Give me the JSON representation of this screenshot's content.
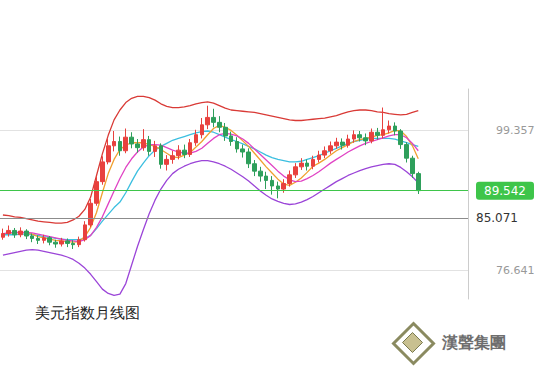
{
  "chart_data": {
    "type": "candlestick",
    "title": "美元指数月线图",
    "logo_text": "漢聲集團",
    "categories": [
      null,
      null,
      null,
      null,
      null,
      null,
      null,
      null,
      null,
      null,
      null,
      null,
      null,
      null,
      null,
      null,
      null,
      null,
      null,
      null,
      null,
      null,
      null,
      null,
      null,
      null,
      null,
      null,
      null,
      null,
      null,
      null,
      null,
      null,
      null,
      null,
      null,
      null,
      null,
      null,
      null,
      null,
      null,
      null,
      null,
      null,
      null,
      null,
      null,
      null,
      null,
      null,
      null,
      null,
      null,
      null,
      null,
      null,
      null,
      null,
      null,
      null,
      null,
      null,
      null,
      null,
      null,
      null,
      null,
      null,
      null,
      null,
      null,
      null,
      null,
      null,
      null,
      null,
      null,
      null
    ],
    "open": [
      82.0,
      82.6,
      83.1,
      82.4,
      83.0,
      82.2,
      81.8,
      81.5,
      81.9,
      81.2,
      80.9,
      81.4,
      81.0,
      80.8,
      81.6,
      84.0,
      87.5,
      91.0,
      94.2,
      96.8,
      97.5,
      96.0,
      98.2,
      97.1,
      96.5,
      97.8,
      95.9,
      96.8,
      93.8,
      94.6,
      95.2,
      96.1,
      95.4,
      97.3,
      98.6,
      100.2,
      101.4,
      100.6,
      99.8,
      98.4,
      97.5,
      96.3,
      95.8,
      93.9,
      92.7,
      91.9,
      91.2,
      90.3,
      89.8,
      90.7,
      92.1,
      93.4,
      94.0,
      93.5,
      94.6,
      95.3,
      96.0,
      96.8,
      97.4,
      96.9,
      97.9,
      98.6,
      98.1,
      97.6,
      99.0,
      98.5,
      99.4,
      100.0,
      99.2,
      97.0,
      94.8,
      92.3,
      null,
      null,
      null,
      null,
      null,
      null,
      null,
      null
    ],
    "close": [
      82.6,
      83.1,
      82.4,
      83.0,
      82.2,
      81.8,
      81.5,
      81.9,
      81.2,
      80.9,
      81.4,
      81.0,
      80.8,
      81.6,
      84.0,
      87.5,
      91.0,
      94.2,
      96.8,
      97.5,
      96.0,
      98.2,
      97.1,
      96.5,
      97.8,
      95.9,
      96.8,
      93.8,
      94.6,
      95.2,
      96.1,
      95.4,
      97.3,
      98.6,
      100.2,
      101.4,
      100.6,
      99.8,
      98.4,
      97.5,
      96.3,
      95.8,
      93.9,
      92.7,
      91.9,
      91.2,
      90.3,
      89.8,
      90.7,
      92.1,
      93.4,
      94.0,
      93.5,
      94.6,
      95.3,
      96.0,
      96.8,
      97.4,
      96.9,
      97.9,
      98.6,
      98.1,
      97.6,
      99.0,
      98.5,
      99.4,
      100.0,
      99.2,
      97.0,
      94.8,
      92.3,
      89.542,
      null,
      null,
      null,
      null,
      null,
      null,
      null,
      null
    ],
    "low": [
      81.6,
      82.1,
      81.9,
      82.0,
      81.7,
      81.2,
      80.9,
      81.0,
      80.7,
      80.3,
      80.5,
      80.4,
      80.1,
      80.4,
      81.3,
      83.6,
      87.1,
      90.5,
      93.8,
      95.9,
      95.2,
      95.6,
      96.4,
      95.7,
      96.0,
      95.2,
      95.0,
      93.1,
      92.8,
      93.9,
      94.6,
      94.8,
      95.0,
      96.8,
      98.0,
      99.5,
      99.8,
      99.0,
      97.6,
      96.8,
      95.7,
      94.9,
      93.2,
      91.9,
      91.0,
      89.8,
      88.9,
      88.3,
      89.2,
      90.2,
      91.6,
      92.9,
      92.8,
      93.0,
      94.1,
      94.8,
      95.5,
      96.3,
      96.2,
      96.5,
      97.3,
      97.5,
      96.9,
      97.2,
      97.8,
      98.0,
      98.8,
      98.5,
      96.3,
      94.1,
      91.6,
      89.0,
      null,
      null,
      null,
      null,
      null,
      null,
      null,
      null
    ],
    "high": [
      83.4,
      83.9,
      83.5,
      83.6,
      83.3,
      82.6,
      82.3,
      82.4,
      82.2,
      81.6,
      81.9,
      81.8,
      81.5,
      82.1,
      84.6,
      88.2,
      91.8,
      95.1,
      97.9,
      99.2,
      98.3,
      99.6,
      99.0,
      97.9,
      99.5,
      98.4,
      97.6,
      97.2,
      95.3,
      96.0,
      96.9,
      97.0,
      97.9,
      99.4,
      101.3,
      103.3,
      102.8,
      101.6,
      100.5,
      99.1,
      98.2,
      97.0,
      96.4,
      94.5,
      93.4,
      92.6,
      91.9,
      91.0,
      91.4,
      92.8,
      94.0,
      94.8,
      94.6,
      95.2,
      96.0,
      96.7,
      97.5,
      98.1,
      98.0,
      98.6,
      99.3,
      99.2,
      98.8,
      99.6,
      99.7,
      103.0,
      100.9,
      100.6,
      99.5,
      97.4,
      95.2,
      92.6,
      null,
      null,
      null,
      null,
      null,
      null,
      null,
      null
    ],
    "series": [
      {
        "type": "line",
        "color": "#d93a36",
        "values": [
          85.6,
          85.5,
          85.3,
          85.2,
          85.0,
          84.8,
          84.6,
          84.5,
          84.4,
          84.3,
          84.3,
          84.4,
          84.8,
          85.4,
          86.5,
          88.5,
          92.0,
          95.5,
          98.5,
          101.0,
          102.6,
          103.8,
          104.5,
          104.8,
          104.8,
          104.6,
          104.2,
          103.6,
          103.2,
          103.0,
          103.0,
          103.1,
          103.3,
          103.6,
          103.8,
          103.9,
          103.7,
          103.3,
          102.9,
          102.6,
          102.5,
          102.4,
          102.3,
          102.2,
          102.0,
          101.8,
          101.6,
          101.4,
          101.2,
          101.0,
          100.9,
          100.9,
          101.0,
          101.1,
          101.2,
          101.3,
          101.5,
          101.7,
          102.0,
          102.3,
          102.5,
          102.6,
          102.6,
          102.5,
          102.3,
          102.2,
          102.0,
          101.9,
          101.8,
          101.9,
          102.2,
          102.5,
          null,
          null,
          null,
          null,
          null,
          null,
          null,
          null
        ]
      },
      {
        "type": "line",
        "color": "#9b45d8",
        "values": [
          79.1,
          79.3,
          79.5,
          79.7,
          79.9,
          80.0,
          79.9,
          79.7,
          79.5,
          79.3,
          79.1,
          78.8,
          78.4,
          77.8,
          77.0,
          76.0,
          74.8,
          73.6,
          72.9,
          72.6,
          72.8,
          74.5,
          77.5,
          80.5,
          83.2,
          85.8,
          88.0,
          89.8,
          91.2,
          92.3,
          93.0,
          93.5,
          93.9,
          94.2,
          94.4,
          94.4,
          94.2,
          93.9,
          93.5,
          93.0,
          92.4,
          91.8,
          91.1,
          90.3,
          89.5,
          88.8,
          88.2,
          87.8,
          87.5,
          87.3,
          87.4,
          87.7,
          88.1,
          88.6,
          89.2,
          89.8,
          90.4,
          91.0,
          91.5,
          92.0,
          92.4,
          92.8,
          93.1,
          93.4,
          93.6,
          93.8,
          93.9,
          93.8,
          93.3,
          92.6,
          91.8,
          90.8,
          null,
          null,
          null,
          null,
          null,
          null,
          null,
          null
        ]
      },
      {
        "type": "line",
        "color": "#3cbfe0",
        "values": [
          82.4,
          82.4,
          82.4,
          82.5,
          82.5,
          82.4,
          82.3,
          82.1,
          82.0,
          81.8,
          81.7,
          81.6,
          81.6,
          81.6,
          81.8,
          82.3,
          83.4,
          84.6,
          85.7,
          86.8,
          87.7,
          89.2,
          91.0,
          92.7,
          94.0,
          95.2,
          96.1,
          96.7,
          97.2,
          97.7,
          98.0,
          98.3,
          98.6,
          98.9,
          99.1,
          99.2,
          99.0,
          98.6,
          98.2,
          97.8,
          97.5,
          97.1,
          96.7,
          96.3,
          95.8,
          95.3,
          94.9,
          94.6,
          94.4,
          94.2,
          94.2,
          94.3,
          94.6,
          94.9,
          95.2,
          95.6,
          96.0,
          96.4,
          96.8,
          97.2,
          97.5,
          97.7,
          97.9,
          98.0,
          98.0,
          98.0,
          98.0,
          97.9,
          97.6,
          97.3,
          97.0,
          96.7,
          null,
          null,
          null,
          null,
          null,
          null,
          null,
          null
        ]
      },
      {
        "type": "line",
        "color": "#f0a030",
        "values": [
          82.5,
          82.7,
          82.7,
          82.8,
          82.7,
          82.5,
          82.1,
          81.9,
          81.7,
          81.5,
          81.4,
          81.3,
          81.2,
          81.3,
          82.1,
          83.6,
          86.0,
          89.2,
          92.3,
          94.6,
          96.2,
          96.9,
          97.3,
          97.3,
          97.3,
          97.0,
          96.7,
          96.2,
          95.6,
          95.0,
          94.9,
          95.3,
          95.7,
          96.6,
          97.5,
          98.6,
          99.6,
          100.1,
          99.8,
          99.3,
          98.5,
          97.6,
          96.7,
          95.6,
          94.5,
          93.4,
          92.4,
          91.4,
          90.6,
          90.4,
          90.9,
          91.6,
          92.5,
          93.5,
          94.0,
          94.6,
          95.3,
          96.0,
          96.5,
          97.0,
          97.5,
          97.8,
          98.0,
          98.2,
          98.5,
          98.6,
          98.9,
          99.3,
          99.2,
          98.3,
          96.8,
          94.7,
          null,
          null,
          null,
          null,
          null,
          null,
          null,
          null
        ]
      },
      {
        "type": "line",
        "color": "#e043c4",
        "values": [
          82.6,
          82.7,
          82.8,
          82.8,
          82.8,
          82.7,
          82.5,
          82.3,
          82.1,
          81.9,
          81.7,
          81.5,
          81.4,
          81.3,
          81.6,
          82.3,
          83.6,
          85.3,
          87.4,
          89.5,
          91.5,
          93.3,
          94.7,
          95.8,
          96.6,
          97.0,
          97.0,
          96.9,
          96.5,
          96.1,
          95.8,
          95.6,
          95.6,
          95.9,
          96.4,
          97.2,
          98.0,
          98.6,
          98.8,
          98.7,
          98.4,
          97.9,
          97.2,
          96.3,
          95.4,
          94.5,
          93.6,
          92.7,
          91.9,
          91.3,
          91.0,
          91.1,
          91.5,
          92.0,
          92.6,
          93.3,
          94.0,
          94.6,
          95.2,
          95.8,
          96.3,
          96.8,
          97.2,
          97.5,
          97.8,
          98.1,
          98.4,
          98.6,
          98.6,
          98.1,
          97.2,
          96.0,
          null,
          null,
          null,
          null,
          null,
          null,
          null,
          null
        ]
      }
    ],
    "lines": [
      {
        "value": 89.542,
        "color": "#3ec54a"
      },
      {
        "value": 85.071,
        "color": "#8c8c8c"
      }
    ],
    "ylim": [
      72,
      106
    ],
    "yticks": [
      76.641,
      99.357
    ],
    "grid": true,
    "tick_labels": "y"
  }
}
